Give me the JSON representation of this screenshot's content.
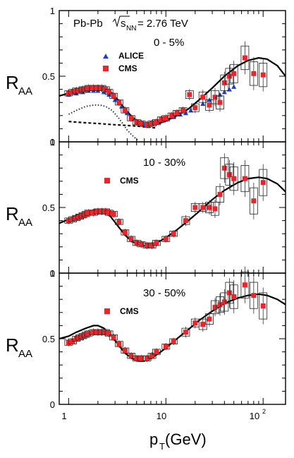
{
  "figure": {
    "collision_label": "Pb-Pb",
    "energy_label_prefix": "√s",
    "energy_label_sub": "NN",
    "energy_label_value": " = 2.76 TeV",
    "x_axis_label_main": "p",
    "x_axis_label_sub": "T",
    "x_axis_label_unit": " (GeV)",
    "y_axis_label_main": "R",
    "y_axis_label_sub": "AA",
    "x_tick_labels": [
      "1",
      "10",
      "10"
    ],
    "x_tick_exponent": "2"
  },
  "chart_data": [
    {
      "type": "scatter",
      "centrality": "0 - 5%",
      "xscale": "log",
      "xlim": [
        0.8,
        170
      ],
      "ylim": [
        0,
        1
      ],
      "y_tick_labels": [
        "0",
        "0.5",
        "1"
      ],
      "legend": [
        "ALICE",
        "CMS"
      ],
      "series": [
        {
          "name": "CMS",
          "color": "#e8262b",
          "marker": "square",
          "x": [
            1.0,
            1.1,
            1.2,
            1.3,
            1.4,
            1.5,
            1.6,
            1.8,
            2.0,
            2.2,
            2.4,
            2.6,
            2.9,
            3.3,
            3.8,
            4.4,
            5.0,
            5.6,
            6.4,
            7.2,
            8.0,
            9.0,
            10.0,
            11.5,
            13.0,
            15.0,
            17.5,
            20.0,
            24.0,
            28.0,
            32.0,
            36.0,
            40.0,
            45.0,
            50.0,
            65.0,
            80.0,
            100.0
          ],
          "y": [
            0.37,
            0.38,
            0.39,
            0.39,
            0.4,
            0.4,
            0.41,
            0.41,
            0.41,
            0.41,
            0.4,
            0.38,
            0.35,
            0.3,
            0.24,
            0.18,
            0.15,
            0.14,
            0.13,
            0.14,
            0.15,
            0.17,
            0.18,
            0.2,
            0.22,
            0.24,
            0.36,
            0.26,
            0.34,
            0.28,
            0.34,
            0.3,
            0.45,
            0.5,
            0.52,
            0.64,
            0.52,
            0.51
          ],
          "yerr": [
            0.02,
            0.02,
            0.02,
            0.02,
            0.02,
            0.02,
            0.02,
            0.02,
            0.02,
            0.02,
            0.02,
            0.02,
            0.02,
            0.02,
            0.02,
            0.02,
            0.02,
            0.02,
            0.02,
            0.02,
            0.02,
            0.02,
            0.02,
            0.02,
            0.02,
            0.02,
            0.03,
            0.03,
            0.04,
            0.04,
            0.05,
            0.05,
            0.06,
            0.06,
            0.07,
            0.09,
            0.09,
            0.09
          ]
        },
        {
          "name": "ALICE",
          "color": "#1f3fd1",
          "marker": "triangle",
          "x": [
            1.0,
            1.2,
            1.4,
            1.6,
            1.8,
            2.0,
            2.3,
            2.6,
            3.0,
            3.5,
            4.0,
            4.5,
            5.0,
            5.5,
            6.0,
            7.0,
            8.0,
            9.0,
            10.0,
            12.0,
            14.0,
            16.0,
            18.0,
            20.0,
            24.0,
            28.0,
            32.0,
            36.0,
            40.0,
            45.0,
            50.0
          ],
          "y": [
            0.36,
            0.37,
            0.38,
            0.39,
            0.39,
            0.39,
            0.38,
            0.36,
            0.32,
            0.27,
            0.22,
            0.18,
            0.15,
            0.14,
            0.13,
            0.14,
            0.15,
            0.16,
            0.17,
            0.19,
            0.21,
            0.22,
            0.24,
            0.26,
            0.29,
            0.32,
            0.34,
            0.36,
            0.38,
            0.4,
            0.42
          ]
        }
      ],
      "curves": [
        {
          "style": "solid",
          "x": [
            0.8,
            1.0,
            1.2,
            1.5,
            1.8,
            2.0,
            2.3,
            2.7,
            3.2,
            3.8,
            4.5,
            5.2,
            6.0,
            7.0,
            8.5,
            10.0,
            13.0,
            17.0,
            22.0,
            30.0,
            40.0,
            55.0,
            70.0,
            90.0,
            110.0,
            140.0,
            170.0
          ],
          "y": [
            0.35,
            0.37,
            0.39,
            0.41,
            0.42,
            0.42,
            0.41,
            0.38,
            0.32,
            0.25,
            0.19,
            0.15,
            0.13,
            0.13,
            0.14,
            0.16,
            0.2,
            0.25,
            0.32,
            0.41,
            0.5,
            0.58,
            0.62,
            0.64,
            0.63,
            0.58,
            0.5
          ]
        },
        {
          "style": "dotted",
          "x": [
            1.0,
            1.2,
            1.5,
            1.8,
            2.1,
            2.4,
            2.8,
            3.2,
            3.6,
            4.0,
            4.5,
            5.0,
            5.3
          ],
          "y": [
            0.21,
            0.24,
            0.27,
            0.28,
            0.28,
            0.27,
            0.24,
            0.19,
            0.14,
            0.09,
            0.05,
            0.02,
            0.0
          ]
        },
        {
          "style": "dashed",
          "x": [
            1.0,
            1.5,
            2.0,
            3.0,
            4.0,
            5.0,
            6.0,
            7.0,
            8.0
          ],
          "y": [
            0.155,
            0.145,
            0.14,
            0.13,
            0.125,
            0.12,
            0.115,
            0.11,
            0.105
          ]
        }
      ]
    },
    {
      "type": "scatter",
      "centrality": "10 - 30%",
      "xscale": "log",
      "xlim": [
        0.8,
        170
      ],
      "ylim": [
        0,
        1
      ],
      "y_tick_labels": [
        "0",
        "0.5",
        "1"
      ],
      "legend": [
        "CMS"
      ],
      "series": [
        {
          "name": "CMS",
          "color": "#e8262b",
          "marker": "square",
          "x": [
            1.0,
            1.1,
            1.2,
            1.3,
            1.4,
            1.5,
            1.6,
            1.8,
            2.0,
            2.2,
            2.4,
            2.6,
            2.9,
            3.3,
            3.8,
            4.4,
            5.0,
            5.6,
            6.4,
            7.2,
            8.0,
            10.0,
            12.0,
            16.0,
            20.0,
            24.0,
            28.0,
            32.0,
            36.0,
            40.0,
            45.0,
            50.0,
            65.0,
            80.0,
            100.0
          ],
          "y": [
            0.4,
            0.41,
            0.42,
            0.43,
            0.44,
            0.45,
            0.46,
            0.46,
            0.47,
            0.47,
            0.47,
            0.46,
            0.45,
            0.39,
            0.31,
            0.26,
            0.23,
            0.22,
            0.21,
            0.21,
            0.23,
            0.26,
            0.3,
            0.4,
            0.5,
            0.5,
            0.5,
            0.49,
            0.6,
            0.8,
            0.75,
            0.72,
            0.72,
            0.55,
            0.69
          ],
          "yerr": [
            0.02,
            0.02,
            0.02,
            0.02,
            0.02,
            0.02,
            0.02,
            0.02,
            0.02,
            0.02,
            0.02,
            0.02,
            0.02,
            0.02,
            0.02,
            0.02,
            0.02,
            0.02,
            0.02,
            0.02,
            0.02,
            0.02,
            0.02,
            0.03,
            0.03,
            0.03,
            0.04,
            0.05,
            0.06,
            0.08,
            0.08,
            0.09,
            0.1,
            0.1,
            0.1
          ]
        }
      ],
      "curves": [
        {
          "style": "solid",
          "x": [
            0.8,
            1.0,
            1.2,
            1.5,
            1.8,
            2.0,
            2.3,
            2.7,
            3.2,
            3.8,
            4.5,
            5.2,
            6.0,
            7.0,
            8.5,
            10.0,
            13.0,
            17.0,
            22.0,
            30.0,
            40.0,
            55.0,
            70.0,
            90.0,
            110.0,
            140.0,
            170.0
          ],
          "y": [
            0.38,
            0.41,
            0.44,
            0.46,
            0.48,
            0.48,
            0.47,
            0.43,
            0.36,
            0.29,
            0.24,
            0.22,
            0.21,
            0.22,
            0.24,
            0.27,
            0.33,
            0.4,
            0.47,
            0.56,
            0.63,
            0.69,
            0.72,
            0.73,
            0.72,
            0.68,
            0.62
          ]
        }
      ]
    },
    {
      "type": "scatter",
      "centrality": "30 - 50%",
      "xscale": "log",
      "xlim": [
        0.8,
        170
      ],
      "ylim": [
        0,
        1
      ],
      "y_tick_labels": [
        "0",
        "0.5",
        "1"
      ],
      "legend": [
        "CMS"
      ],
      "series": [
        {
          "name": "CMS",
          "color": "#e8262b",
          "marker": "square",
          "x": [
            1.0,
            1.1,
            1.2,
            1.3,
            1.4,
            1.5,
            1.6,
            1.8,
            2.0,
            2.2,
            2.4,
            2.6,
            2.9,
            3.3,
            3.8,
            4.4,
            5.0,
            5.6,
            6.4,
            7.2,
            8.0,
            10.0,
            12.0,
            16.0,
            20.0,
            24.0,
            28.0,
            32.0,
            36.0,
            40.0,
            45.0,
            50.0,
            65.0,
            80.0,
            100.0
          ],
          "y": [
            0.47,
            0.48,
            0.5,
            0.51,
            0.52,
            0.53,
            0.54,
            0.55,
            0.55,
            0.55,
            0.55,
            0.54,
            0.51,
            0.46,
            0.41,
            0.37,
            0.35,
            0.35,
            0.35,
            0.37,
            0.4,
            0.44,
            0.48,
            0.55,
            0.62,
            0.61,
            0.65,
            0.74,
            0.76,
            0.78,
            0.85,
            0.82,
            0.91,
            0.83,
            0.75
          ],
          "yerr": [
            0.02,
            0.02,
            0.02,
            0.02,
            0.02,
            0.02,
            0.02,
            0.02,
            0.02,
            0.02,
            0.02,
            0.02,
            0.02,
            0.02,
            0.02,
            0.02,
            0.02,
            0.02,
            0.02,
            0.02,
            0.02,
            0.02,
            0.02,
            0.03,
            0.03,
            0.04,
            0.04,
            0.05,
            0.06,
            0.07,
            0.08,
            0.09,
            0.1,
            0.1,
            0.1
          ]
        }
      ],
      "curves": [
        {
          "style": "solid",
          "x": [
            0.8,
            1.0,
            1.2,
            1.5,
            1.8,
            2.0,
            2.3,
            2.7,
            3.2,
            3.8,
            4.5,
            5.2,
            6.0,
            7.0,
            8.5,
            10.0,
            13.0,
            17.0,
            22.0,
            30.0,
            40.0,
            55.0,
            70.0,
            90.0,
            110.0,
            140.0,
            170.0
          ],
          "y": [
            0.5,
            0.52,
            0.55,
            0.58,
            0.6,
            0.6,
            0.58,
            0.53,
            0.46,
            0.39,
            0.35,
            0.33,
            0.33,
            0.35,
            0.39,
            0.43,
            0.5,
            0.57,
            0.64,
            0.71,
            0.77,
            0.81,
            0.83,
            0.84,
            0.83,
            0.8,
            0.76
          ]
        }
      ]
    }
  ]
}
